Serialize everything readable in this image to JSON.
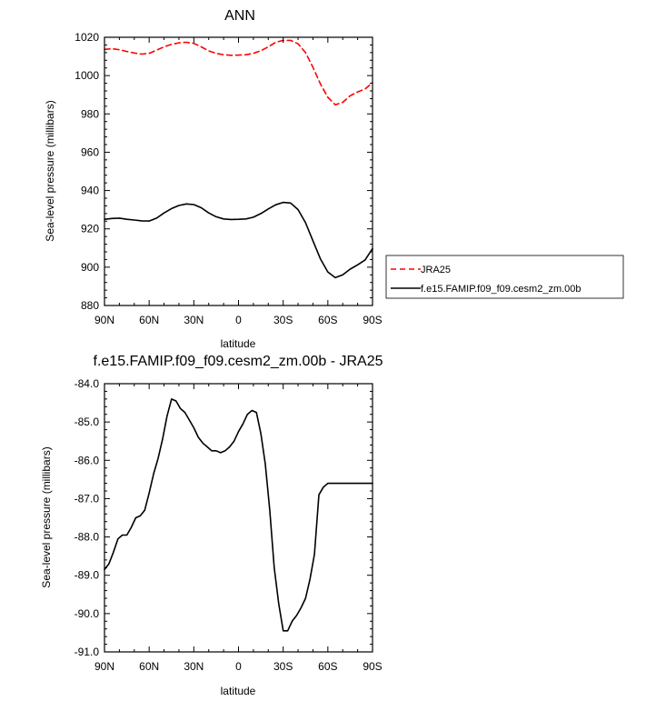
{
  "chart_data": [
    {
      "type": "line",
      "title": "ANN",
      "xlabel": "latitude",
      "ylabel": "Sea-level pressure (millibars)",
      "xlim": [
        90,
        -90
      ],
      "ylim": [
        880,
        1020
      ],
      "x_ticks": [
        {
          "value": 90,
          "label": "90N"
        },
        {
          "value": 60,
          "label": "60N"
        },
        {
          "value": 30,
          "label": "30N"
        },
        {
          "value": 0,
          "label": "0"
        },
        {
          "value": -30,
          "label": "30S"
        },
        {
          "value": -60,
          "label": "60S"
        },
        {
          "value": -90,
          "label": "90S"
        }
      ],
      "y_ticks": [
        {
          "value": 880,
          "label": "880"
        },
        {
          "value": 900,
          "label": "900"
        },
        {
          "value": 920,
          "label": "920"
        },
        {
          "value": 940,
          "label": "940"
        },
        {
          "value": 960,
          "label": "960"
        },
        {
          "value": 980,
          "label": "980"
        },
        {
          "value": 1000,
          "label": "1000"
        },
        {
          "value": 1020,
          "label": "1020"
        }
      ],
      "legend": "right",
      "series": [
        {
          "name": "JRA25",
          "color": "#ff0000",
          "dash": "dashed",
          "x": [
            90,
            85,
            80,
            75,
            70,
            65,
            60,
            55,
            50,
            45,
            40,
            35,
            30,
            25,
            20,
            15,
            10,
            5,
            0,
            -5,
            -10,
            -15,
            -20,
            -25,
            -30,
            -35,
            -40,
            -45,
            -50,
            -55,
            -60,
            -65,
            -70,
            -75,
            -80,
            -85,
            -90
          ],
          "y": [
            1013.7,
            1014.0,
            1013.5,
            1012.6,
            1011.8,
            1011.2,
            1011.6,
            1013.3,
            1015.0,
            1016.3,
            1017.1,
            1017.4,
            1016.8,
            1015.0,
            1012.9,
            1011.6,
            1010.9,
            1010.6,
            1010.7,
            1010.9,
            1011.6,
            1013.0,
            1015.0,
            1017.4,
            1018.4,
            1018.4,
            1016.6,
            1012.0,
            1004.4,
            995.7,
            988.7,
            984.8,
            986.0,
            989.5,
            991.5,
            993.0,
            996.3
          ]
        },
        {
          "name": "f.e15.FAMIP.f09_f09.cesm2_zm.00b",
          "color": "#000000",
          "dash": "solid",
          "x": [
            90,
            85,
            80,
            75,
            70,
            65,
            60,
            55,
            50,
            45,
            40,
            35,
            30,
            25,
            20,
            15,
            10,
            5,
            0,
            -5,
            -10,
            -15,
            -20,
            -25,
            -30,
            -35,
            -40,
            -45,
            -50,
            -55,
            -60,
            -65,
            -70,
            -75,
            -80,
            -85,
            -90
          ],
          "y": [
            925.0,
            925.4,
            925.6,
            925.0,
            924.6,
            924.2,
            924.1,
            925.6,
            928.3,
            930.6,
            932.2,
            933.0,
            932.7,
            931.0,
            928.3,
            926.3,
            925.2,
            924.9,
            925.0,
            925.2,
            926.1,
            928.0,
            930.4,
            932.6,
            933.8,
            933.5,
            930.0,
            923.2,
            913.8,
            904.4,
            897.5,
            894.5,
            896.0,
            899.0,
            901.2,
            903.8,
            909.7
          ]
        }
      ]
    },
    {
      "type": "line",
      "title": "f.e15.FAMIP.f09_f09.cesm2_zm.00b - JRA25",
      "xlabel": "latitude",
      "ylabel": "Sea-level pressure (millibars)",
      "xlim": [
        90,
        -90
      ],
      "ylim": [
        -91,
        -84
      ],
      "x_ticks": [
        {
          "value": 90,
          "label": "90N"
        },
        {
          "value": 60,
          "label": "60N"
        },
        {
          "value": 30,
          "label": "30N"
        },
        {
          "value": 0,
          "label": "0"
        },
        {
          "value": -30,
          "label": "30S"
        },
        {
          "value": -60,
          "label": "60S"
        },
        {
          "value": -90,
          "label": "90S"
        }
      ],
      "y_ticks": [
        {
          "value": -91,
          "label": "-91.0"
        },
        {
          "value": -90,
          "label": "-90.0"
        },
        {
          "value": -89,
          "label": "-89.0"
        },
        {
          "value": -88,
          "label": "-88.0"
        },
        {
          "value": -87,
          "label": "-87.0"
        },
        {
          "value": -86,
          "label": "-86.0"
        },
        {
          "value": -85,
          "label": "-85.0"
        },
        {
          "value": -84,
          "label": "-84.0"
        }
      ],
      "series": [
        {
          "color": "#000000",
          "dash": "solid",
          "x": [
            90,
            87,
            84,
            81,
            78,
            75,
            72,
            69,
            66,
            63,
            60,
            57,
            54,
            51,
            48,
            45,
            42,
            39,
            36,
            33,
            30,
            27,
            24,
            21,
            18,
            15,
            12,
            9,
            6,
            3,
            0,
            -3,
            -6,
            -9,
            -12,
            -15,
            -18,
            -21,
            -24,
            -27,
            -30,
            -33,
            -36,
            -39,
            -42,
            -45,
            -48,
            -51,
            -54,
            -57,
            -60,
            -63,
            -66,
            -69,
            -72,
            -75,
            -78,
            -81,
            -84,
            -87,
            -90
          ],
          "y": [
            -88.85,
            -88.7,
            -88.4,
            -88.05,
            -87.95,
            -87.95,
            -87.75,
            -87.5,
            -87.45,
            -87.3,
            -86.85,
            -86.35,
            -85.95,
            -85.45,
            -84.85,
            -84.4,
            -84.45,
            -84.65,
            -84.75,
            -84.95,
            -85.15,
            -85.4,
            -85.55,
            -85.65,
            -85.75,
            -85.75,
            -85.8,
            -85.75,
            -85.65,
            -85.5,
            -85.25,
            -85.05,
            -84.8,
            -84.7,
            -84.75,
            -85.3,
            -86.1,
            -87.3,
            -88.8,
            -89.75,
            -90.45,
            -90.45,
            -90.2,
            -90.05,
            -89.85,
            -89.6,
            -89.1,
            -88.45,
            -86.9,
            -86.7,
            -86.6,
            -86.6,
            -86.6,
            -86.6,
            -86.6,
            -86.6,
            -86.6,
            -86.6,
            -86.6,
            -86.6,
            -86.6
          ]
        }
      ]
    }
  ]
}
